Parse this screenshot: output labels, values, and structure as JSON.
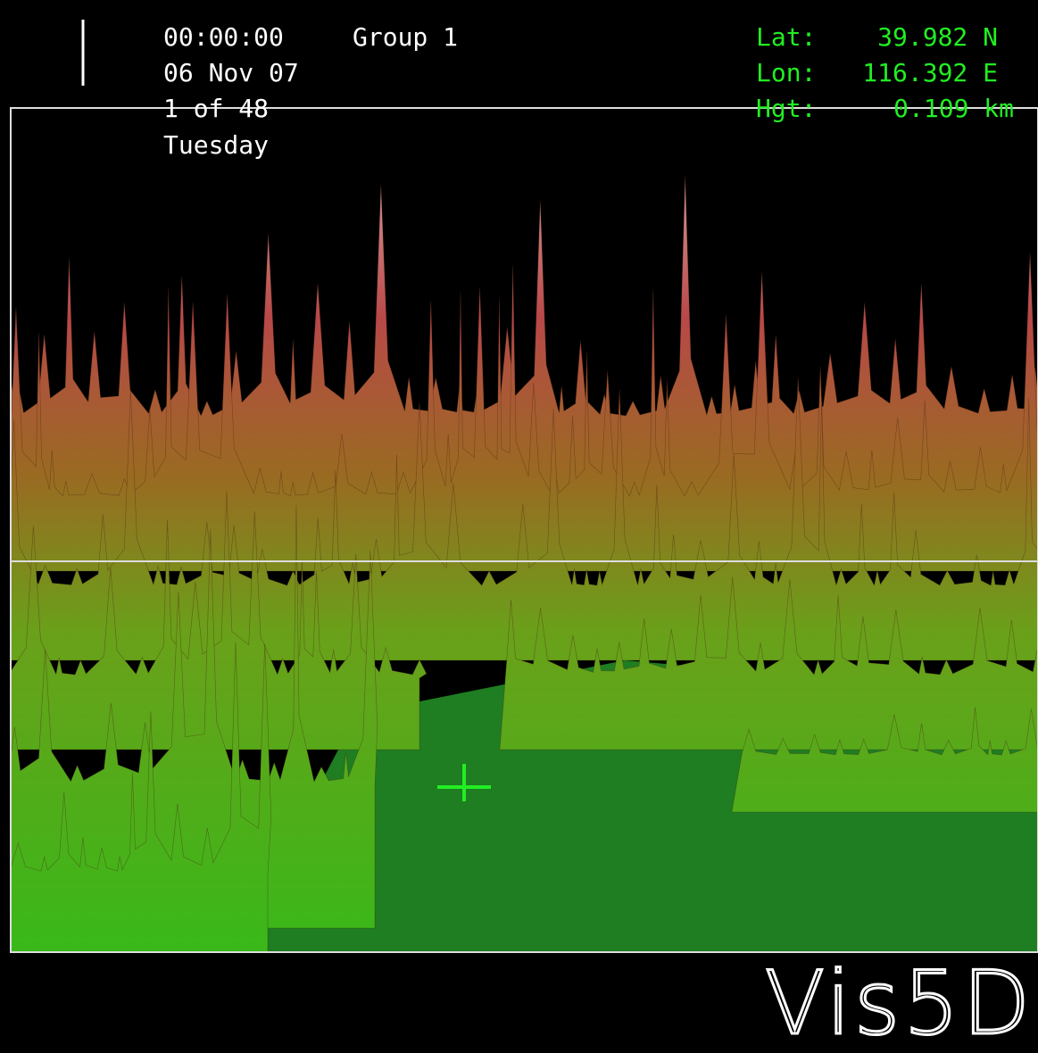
{
  "header": {
    "time": "00:00:00",
    "group": "Group 1",
    "date": "06 Nov 07",
    "step": "1 of 48",
    "weekday": "Tuesday"
  },
  "probe": {
    "lat_label": "Lat:",
    "lat_value": "39.982 N",
    "lon_label": "Lon:",
    "lon_value": "116.392 E",
    "hgt_label": "Hgt:",
    "hgt_value": "0.109 km"
  },
  "logo": "Vis5D"
}
